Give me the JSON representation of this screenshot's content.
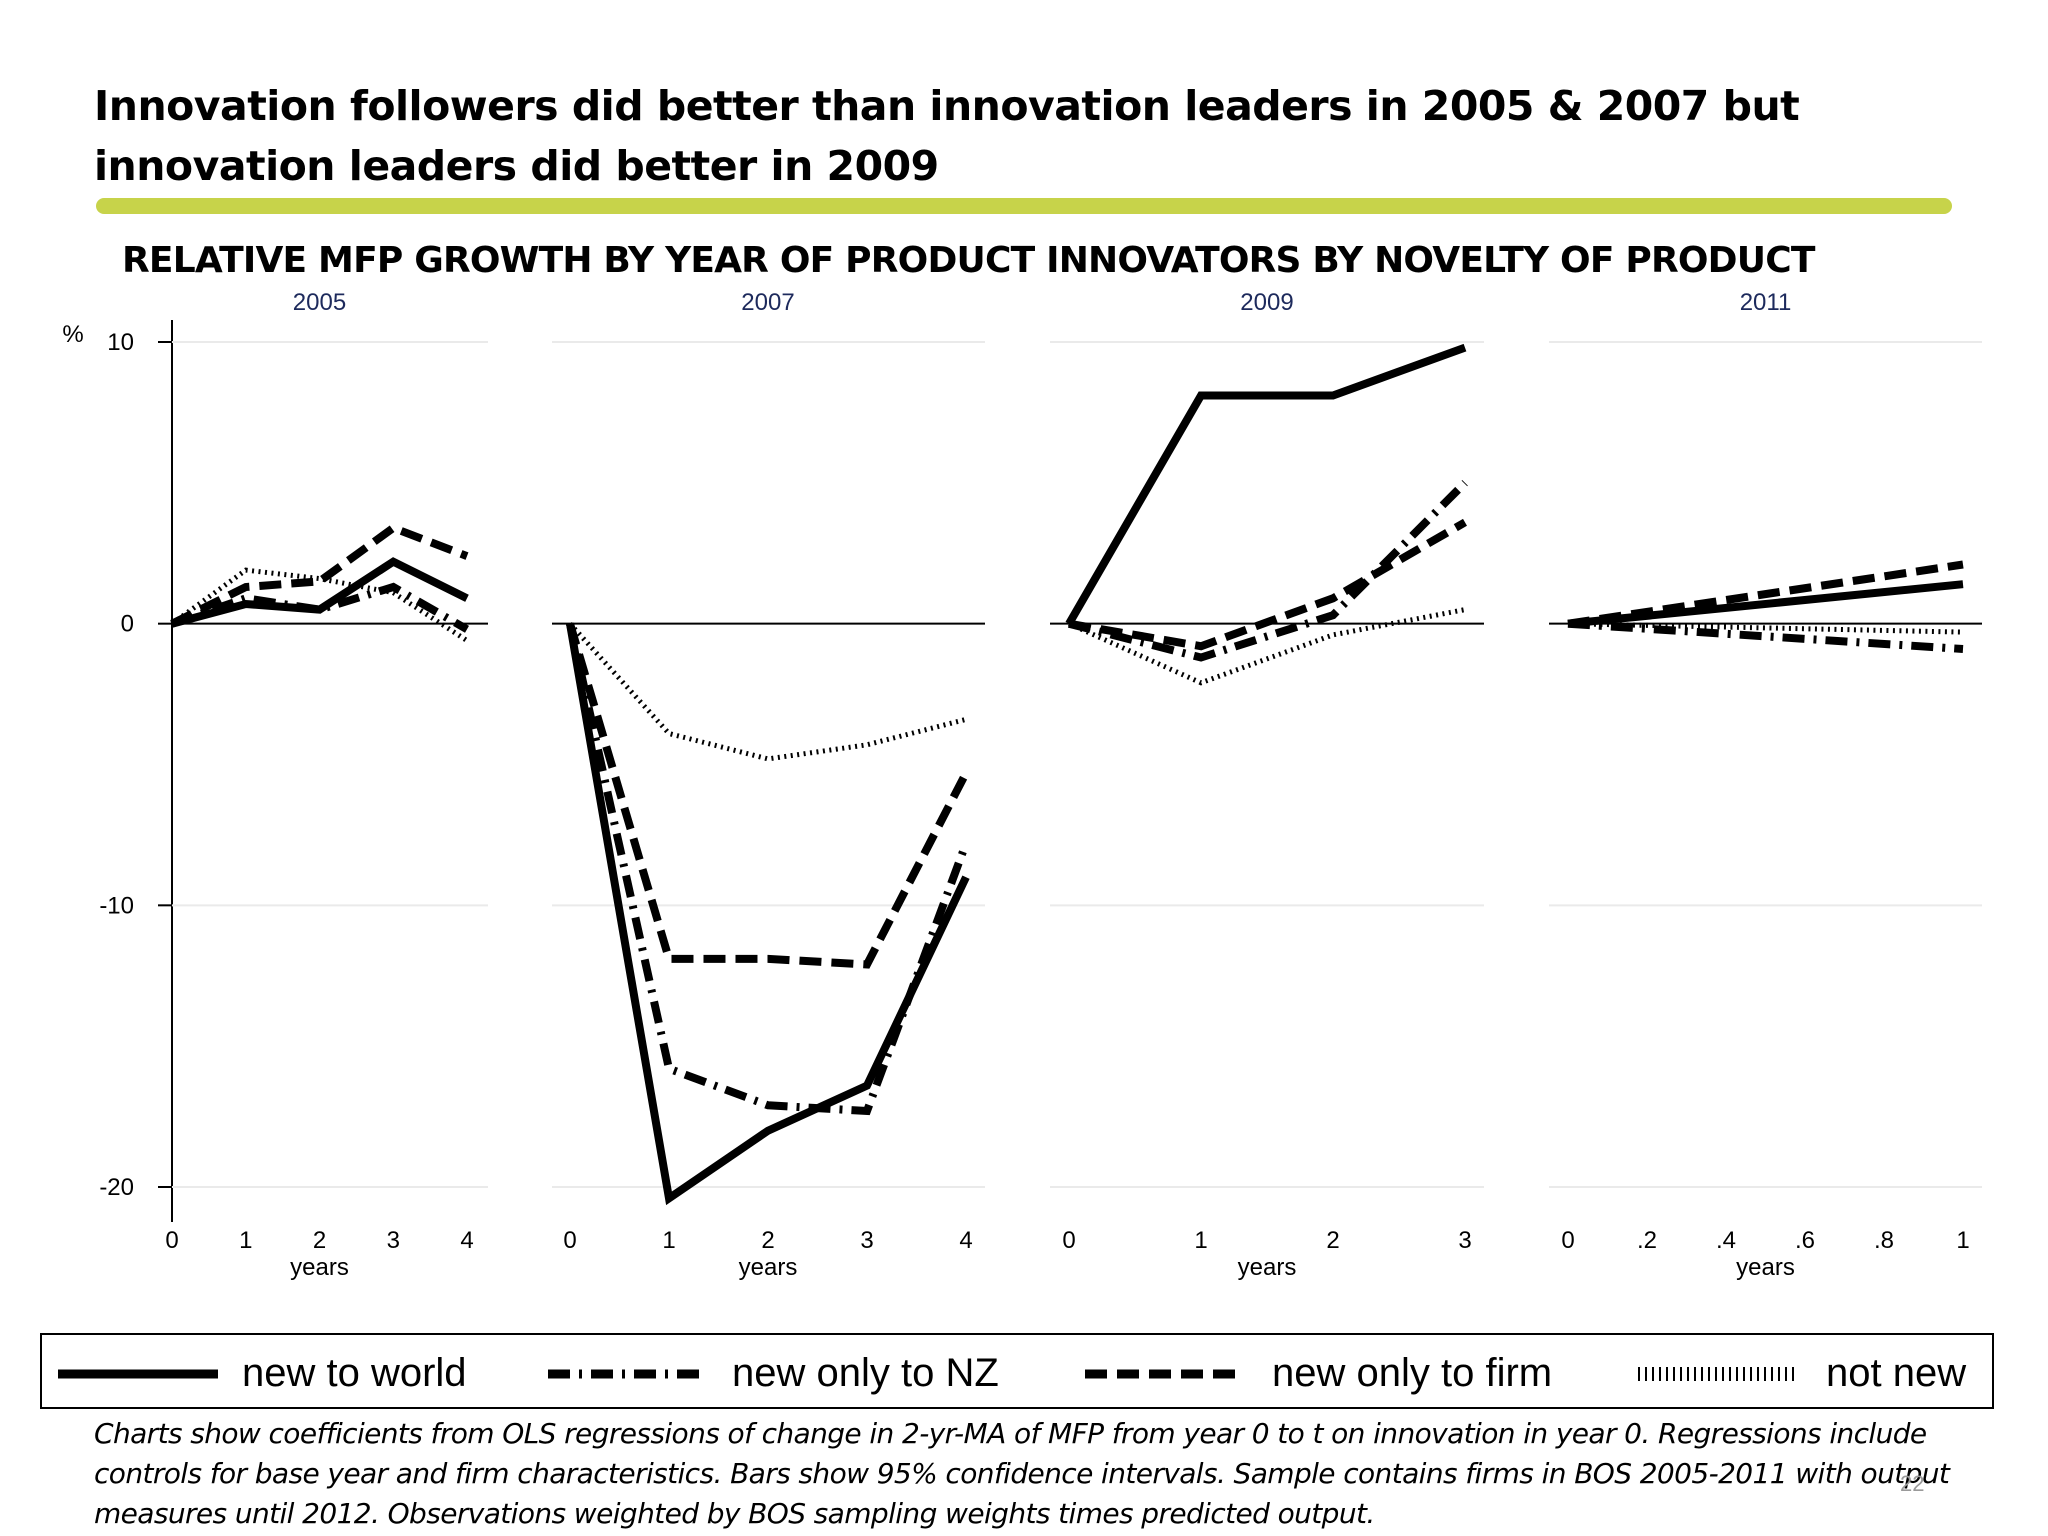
{
  "slide": {
    "title": "Innovation followers did better than innovation leaders in 2005 & 2007 but innovation leaders did better in 2009",
    "caption": "Charts show coefficients from OLS regressions of change in 2-yr-MA of MFP from year 0 to t on innovation in year 0. Regressions include controls for base year and firm characteristics. Bars show 95% confidence intervals. Sample contains firms in BOS 2005-2011 with output measures until 2012. Observations weighted by BOS sampling weights times predicted output.",
    "page_number": "22",
    "accent_color": "#c7d34a"
  },
  "chart_data": {
    "type": "line",
    "title": "RELATIVE MFP GROWTH BY YEAR OF PRODUCT INNOVATORS BY NOVELTY OF PRODUCT",
    "ylabel": "%",
    "ylim": [
      -21,
      10.5
    ],
    "yticks": [
      10,
      0,
      -10,
      -20
    ],
    "grid": true,
    "legend_position": "bottom",
    "series_names": [
      "new to world",
      "new only to NZ",
      "new only to firm",
      "not new"
    ],
    "series_styles": [
      "solid",
      "dash-dot",
      "dashed",
      "dotted"
    ],
    "panels": [
      {
        "label": "2005",
        "xlabel": "years",
        "xlim": [
          0,
          4
        ],
        "xticks": [
          0,
          1,
          2,
          3,
          4
        ],
        "xtick_labels": [
          "0",
          "1",
          "2",
          "3",
          "4"
        ],
        "x": [
          0,
          1,
          2,
          3,
          4
        ],
        "series": [
          {
            "values": [
              0,
              0.7,
              0.5,
              2.2,
              0.9
            ]
          },
          {
            "values": [
              0,
              0.9,
              0.5,
              1.3,
              -0.2
            ]
          },
          {
            "values": [
              0,
              1.3,
              1.5,
              3.4,
              2.4
            ]
          },
          {
            "values": [
              0,
              1.9,
              1.6,
              1.1,
              -0.6
            ]
          }
        ]
      },
      {
        "label": "2007",
        "xlabel": "years",
        "xlim": [
          0,
          4
        ],
        "xticks": [
          0,
          1,
          2,
          3,
          4
        ],
        "xtick_labels": [
          "0",
          "1",
          "2",
          "3",
          "4"
        ],
        "x": [
          0,
          1,
          2,
          3,
          4
        ],
        "series": [
          {
            "values": [
              0,
              -20.4,
              -18,
              -16.4,
              -9
            ]
          },
          {
            "values": [
              0,
              -15.8,
              -17.1,
              -17.3,
              -7.8
            ]
          },
          {
            "values": [
              0,
              -11.9,
              -11.9,
              -12.1,
              -5.3
            ]
          },
          {
            "values": [
              0,
              -3.9,
              -4.8,
              -4.3,
              -3.4
            ]
          }
        ]
      },
      {
        "label": "2009",
        "xlabel": "years",
        "xlim": [
          0,
          3
        ],
        "xticks": [
          0,
          1,
          2,
          3
        ],
        "xtick_labels": [
          "0",
          "1",
          "2",
          "3"
        ],
        "x": [
          0,
          1,
          2,
          3
        ],
        "series": [
          {
            "values": [
              0,
              8.1,
              8.1,
              9.8
            ]
          },
          {
            "values": [
              0,
              -1.2,
              0.3,
              5
            ]
          },
          {
            "values": [
              0,
              -0.8,
              0.9,
              3.6
            ]
          },
          {
            "values": [
              0,
              -2.1,
              -0.4,
              0.5
            ]
          }
        ]
      },
      {
        "label": "2011",
        "xlabel": "years",
        "xlim": [
          0,
          1
        ],
        "xticks": [
          0,
          0.2,
          0.4,
          0.6,
          0.8,
          1
        ],
        "xtick_labels": [
          "0",
          ".2",
          ".4",
          ".6",
          ".8",
          "1"
        ],
        "x": [
          0,
          1
        ],
        "series": [
          {
            "values": [
              0,
              1.4
            ]
          },
          {
            "values": [
              0,
              -0.9
            ]
          },
          {
            "values": [
              0,
              2.1
            ]
          },
          {
            "values": [
              0,
              -0.3
            ]
          }
        ]
      }
    ]
  }
}
